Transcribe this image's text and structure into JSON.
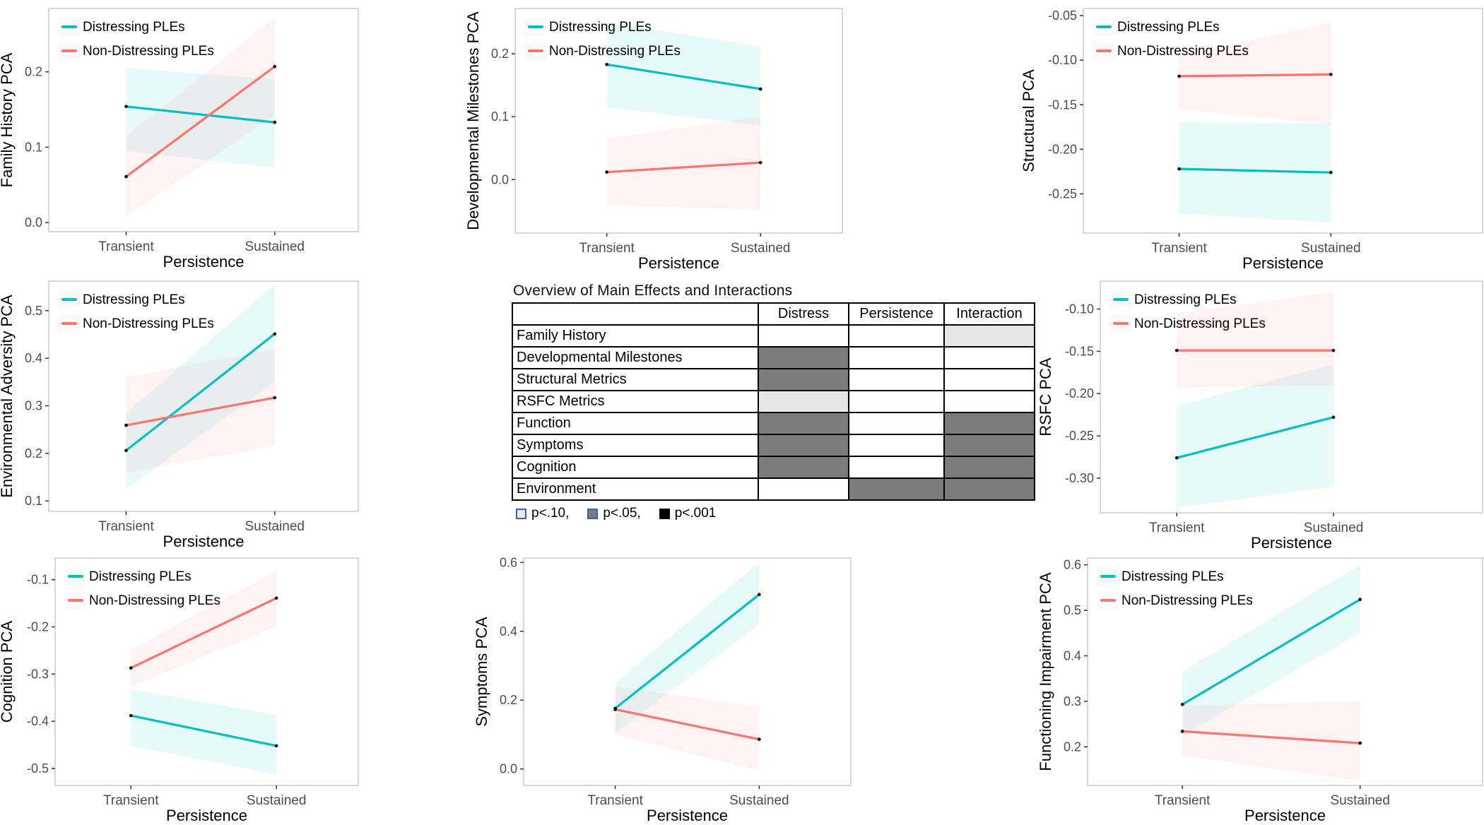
{
  "figure": {
    "series_labels": [
      "Distressing PLEs",
      "Non-Distressing PLEs"
    ],
    "colors": {
      "distressing": "#00BFC4",
      "non_distressing": "#F8766D",
      "tick_text": "#4d4d4d",
      "panel_border": "#cfcfcf",
      "point": "#000000"
    },
    "x_axis": {
      "label": "Persistence",
      "categories": [
        "Transient",
        "Sustained"
      ]
    }
  },
  "chart_data": [
    {
      "id": "family-history",
      "type": "line",
      "ylabel": "Family History PCA",
      "xlabel": "Persistence",
      "categories": [
        "Transient",
        "Sustained"
      ],
      "ylim": [
        -0.012,
        0.284
      ],
      "yticks": [
        0.0,
        0.1,
        0.2
      ],
      "ytick_labels": [
        "0.0",
        "0.1",
        "0.2"
      ],
      "show_legend": true,
      "legend_position": "top-left",
      "grid": false,
      "series": [
        {
          "name": "Distressing PLEs",
          "color": "#00BFC4",
          "values": [
            0.154,
            0.133
          ],
          "band_upper": [
            0.205,
            0.19
          ],
          "band_lower": [
            0.095,
            0.073
          ]
        },
        {
          "name": "Non-Distressing PLEs",
          "color": "#F8766D",
          "values": [
            0.061,
            0.207
          ],
          "band_upper": [
            0.115,
            0.272
          ],
          "band_lower": [
            0.008,
            0.142
          ]
        }
      ]
    },
    {
      "id": "developmental-milestones",
      "type": "line",
      "ylabel": "Developmental Milestones PCA",
      "xlabel": "Persistence",
      "categories": [
        "Transient",
        "Sustained"
      ],
      "ylim": [
        -0.085,
        0.272
      ],
      "yticks": [
        0.0,
        0.1,
        0.2
      ],
      "ytick_labels": [
        "0.0",
        "0.1",
        "0.2"
      ],
      "show_legend": true,
      "legend_position": "top-left",
      "grid": false,
      "series": [
        {
          "name": "Distressing PLEs",
          "color": "#00BFC4",
          "values": [
            0.183,
            0.144
          ],
          "band_upper": [
            0.25,
            0.212
          ],
          "band_lower": [
            0.115,
            0.086
          ]
        },
        {
          "name": "Non-Distressing PLEs",
          "color": "#F8766D",
          "values": [
            0.012,
            0.027
          ],
          "band_upper": [
            0.065,
            0.1
          ],
          "band_lower": [
            -0.04,
            -0.048
          ]
        }
      ]
    },
    {
      "id": "structural",
      "type": "line",
      "ylabel": "Structural PCA",
      "xlabel": "Persistence",
      "categories": [
        "Transient",
        "Sustained"
      ],
      "ylim": [
        -0.294,
        -0.042
      ],
      "yticks": [
        -0.05,
        -0.1,
        -0.15,
        -0.2,
        -0.25
      ],
      "ytick_labels": [
        "-0.05",
        "-0.10",
        "-0.15",
        "-0.20",
        "-0.25"
      ],
      "show_legend": true,
      "legend_position": "top-left",
      "grid": false,
      "series": [
        {
          "name": "Distressing PLEs",
          "color": "#00BFC4",
          "values": [
            -0.222,
            -0.226
          ],
          "band_upper": [
            -0.17,
            -0.171
          ],
          "band_lower": [
            -0.272,
            -0.282
          ]
        },
        {
          "name": "Non-Distressing PLEs",
          "color": "#F8766D",
          "values": [
            -0.118,
            -0.116
          ],
          "band_upper": [
            -0.095,
            -0.058
          ],
          "band_lower": [
            -0.155,
            -0.172
          ]
        }
      ]
    },
    {
      "id": "environmental-adversity",
      "type": "line",
      "ylabel": "Environmental Adversity PCA",
      "xlabel": "Persistence",
      "categories": [
        "Transient",
        "Sustained"
      ],
      "ylim": [
        0.078,
        0.562
      ],
      "yticks": [
        0.1,
        0.2,
        0.3,
        0.4,
        0.5
      ],
      "ytick_labels": [
        "0.1",
        "0.2",
        "0.3",
        "0.4",
        "0.5"
      ],
      "show_legend": true,
      "legend_position": "top-left",
      "grid": false,
      "series": [
        {
          "name": "Distressing PLEs",
          "color": "#00BFC4",
          "values": [
            0.206,
            0.451
          ],
          "band_upper": [
            0.285,
            0.555
          ],
          "band_lower": [
            0.125,
            0.35
          ]
        },
        {
          "name": "Non-Distressing PLEs",
          "color": "#F8766D",
          "values": [
            0.259,
            0.317
          ],
          "band_upper": [
            0.36,
            0.42
          ],
          "band_lower": [
            0.16,
            0.215
          ]
        }
      ]
    },
    {
      "id": "rsfc",
      "type": "line",
      "ylabel": "RSFC PCA",
      "xlabel": "Persistence",
      "categories": [
        "Transient",
        "Sustained"
      ],
      "ylim": [
        -0.341,
        -0.067
      ],
      "yticks": [
        -0.1,
        -0.15,
        -0.2,
        -0.25,
        -0.3
      ],
      "ytick_labels": [
        "-0.10",
        "-0.15",
        "-0.20",
        "-0.25",
        "-0.30"
      ],
      "show_legend": true,
      "legend_position": "top-left",
      "grid": false,
      "series": [
        {
          "name": "Distressing PLEs",
          "color": "#00BFC4",
          "values": [
            -0.276,
            -0.228
          ],
          "band_upper": [
            -0.215,
            -0.165
          ],
          "band_lower": [
            -0.335,
            -0.31
          ]
        },
        {
          "name": "Non-Distressing PLEs",
          "color": "#F8766D",
          "values": [
            -0.149,
            -0.149
          ],
          "band_upper": [
            -0.105,
            -0.08
          ],
          "band_lower": [
            -0.193,
            -0.19
          ]
        }
      ]
    },
    {
      "id": "cognition",
      "type": "line",
      "ylabel": "Cognition PCA",
      "xlabel": "Persistence",
      "categories": [
        "Transient",
        "Sustained"
      ],
      "ylim": [
        -0.536,
        -0.054
      ],
      "yticks": [
        -0.1,
        -0.2,
        -0.3,
        -0.4,
        -0.5
      ],
      "ytick_labels": [
        "-0.1",
        "-0.2",
        "-0.3",
        "-0.4",
        "-0.5"
      ],
      "show_legend": true,
      "legend_position": "top-left",
      "grid": false,
      "series": [
        {
          "name": "Distressing PLEs",
          "color": "#00BFC4",
          "values": [
            -0.388,
            -0.452
          ],
          "band_upper": [
            -0.332,
            -0.387
          ],
          "band_lower": [
            -0.452,
            -0.513
          ]
        },
        {
          "name": "Non-Distressing PLEs",
          "color": "#F8766D",
          "values": [
            -0.287,
            -0.139
          ],
          "band_upper": [
            -0.248,
            -0.082
          ],
          "band_lower": [
            -0.327,
            -0.198
          ]
        }
      ]
    },
    {
      "id": "symptoms",
      "type": "line",
      "ylabel": "Symptoms PCA",
      "xlabel": "Persistence",
      "categories": [
        "Transient",
        "Sustained"
      ],
      "ylim": [
        -0.048,
        0.613
      ],
      "yticks": [
        0.0,
        0.2,
        0.4,
        0.6
      ],
      "ytick_labels": [
        "0.0",
        "0.2",
        "0.4",
        "0.6"
      ],
      "show_legend": false,
      "legend_position": "none",
      "grid": false,
      "series": [
        {
          "name": "Distressing PLEs",
          "color": "#00BFC4",
          "values": [
            0.176,
            0.507
          ],
          "band_upper": [
            0.25,
            0.6
          ],
          "band_lower": [
            0.105,
            0.42
          ]
        },
        {
          "name": "Non-Distressing PLEs",
          "color": "#F8766D",
          "values": [
            0.173,
            0.086
          ],
          "band_upper": [
            0.24,
            0.18
          ],
          "band_lower": [
            0.1,
            -0.005
          ]
        }
      ]
    },
    {
      "id": "functioning-impairment",
      "type": "line",
      "ylabel": "Functioning Impairment PCA",
      "xlabel": "Persistence",
      "categories": [
        "Transient",
        "Sustained"
      ],
      "ylim": [
        0.115,
        0.615
      ],
      "yticks": [
        0.2,
        0.3,
        0.4,
        0.5,
        0.6
      ],
      "ytick_labels": [
        "0.2",
        "0.3",
        "0.4",
        "0.5",
        "0.6"
      ],
      "show_legend": true,
      "legend_position": "top-left",
      "grid": false,
      "series": [
        {
          "name": "Distressing PLEs",
          "color": "#00BFC4",
          "values": [
            0.293,
            0.524
          ],
          "band_upper": [
            0.365,
            0.6
          ],
          "band_lower": [
            0.225,
            0.45
          ]
        },
        {
          "name": "Non-Distressing PLEs",
          "color": "#F8766D",
          "values": [
            0.234,
            0.208
          ],
          "band_upper": [
            0.29,
            0.3
          ],
          "band_lower": [
            0.18,
            0.125
          ]
        }
      ]
    }
  ],
  "table": {
    "title": "Overview of Main Effects and Interactions",
    "columns": [
      "Distress",
      "Persistence",
      "Interaction"
    ],
    "rows": [
      {
        "label": "Family History",
        "cells": [
          "",
          "",
          "p10"
        ]
      },
      {
        "label": "Developmental Milestones",
        "cells": [
          "p05",
          "",
          ""
        ]
      },
      {
        "label": "Structural Metrics",
        "cells": [
          "p05",
          "",
          ""
        ]
      },
      {
        "label": "RSFC Metrics",
        "cells": [
          "p10",
          "",
          ""
        ]
      },
      {
        "label": "Function",
        "cells": [
          "p05",
          "",
          "p05"
        ]
      },
      {
        "label": "Symptoms",
        "cells": [
          "p05",
          "",
          "p05"
        ]
      },
      {
        "label": "Cognition",
        "cells": [
          "p05",
          "",
          "p05"
        ]
      },
      {
        "label": "Environment",
        "cells": [
          "",
          "p05",
          "p05"
        ]
      }
    ],
    "legend": [
      {
        "label": "p<.10,",
        "level": "p10"
      },
      {
        "label": "p<.05,",
        "level": "p05"
      },
      {
        "label": "p<.001",
        "level": "p001"
      }
    ],
    "level_colors": {
      "p10": "#e6e6e6",
      "p05": "#7c7c7c",
      "p001": "#000000"
    }
  }
}
